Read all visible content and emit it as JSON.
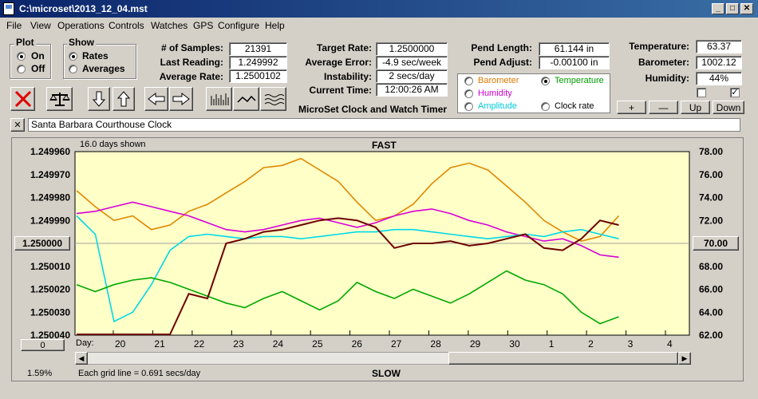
{
  "window": {
    "title": "C:\\microset\\2013_12_04.mst"
  },
  "menu": [
    "File",
    "View",
    "Operations",
    "Controls",
    "Watches",
    "GPS",
    "Configure",
    "Help"
  ],
  "plot": {
    "title": "Plot",
    "options": [
      {
        "label": "On",
        "selected": true
      },
      {
        "label": "Off",
        "selected": false
      }
    ]
  },
  "show": {
    "title": "Show",
    "options": [
      {
        "label": "Rates",
        "selected": true
      },
      {
        "label": "Averages",
        "selected": false
      }
    ]
  },
  "stats": {
    "samples_label": "# of Samples:",
    "samples": "21391",
    "last_label": "Last Reading:",
    "last": "1.249992",
    "avg_label": "Average Rate:",
    "avg": "1.2500102",
    "target_label": "Target Rate:",
    "target": "1.2500000",
    "avgerr_label": "Average Error:",
    "avgerr": "-4.9 sec/week",
    "instab_label": "Instability:",
    "instab": "2 secs/day",
    "time_label": "Current Time:",
    "time": "12:00:26 AM",
    "pendlen_label": "Pend Length:",
    "pendlen": "61.144 in",
    "pendadj_label": "Pend Adjust:",
    "pendadj": "-0.00100 in",
    "temp_label": "Temperature:",
    "temp": "63.37",
    "baro_label": "Barometer:",
    "baro": "1002.12",
    "hum_label": "Humidity:",
    "hum": "44%"
  },
  "app_name": "MicroSet Clock and Watch Timer",
  "sensors": [
    {
      "label": "Barometer",
      "color": "#e07800",
      "selected": false
    },
    {
      "label": "Temperature",
      "color": "#00a000",
      "selected": true
    },
    {
      "label": "Humidity",
      "color": "#d000d0",
      "selected": false
    },
    {
      "label": "Amplitude",
      "color": "#00d0d0",
      "selected": false
    },
    {
      "label": "Clock rate",
      "color": "#000000",
      "selected": false
    }
  ],
  "scale_buttons": [
    "+",
    "—",
    "Up",
    "Down"
  ],
  "checkboxes": [
    false,
    true
  ],
  "clock_name": "Santa Barbara Courthouse Clock",
  "close_glyph": "✕",
  "chart_data": {
    "type": "line",
    "top_label": "FAST",
    "bottom_label": "SLOW",
    "days_shown": "16.0 days shown",
    "grid_note": "Each grid line = 0.691 secs/day",
    "scroll_pct": "1.59%",
    "day_axis_label": "Day:",
    "day_ticks": [
      "20",
      "21",
      "22",
      "23",
      "24",
      "25",
      "26",
      "27",
      "28",
      "29",
      "30",
      "1",
      "2",
      "3",
      "4"
    ],
    "y_left_ticks": [
      "1.249960",
      "1.249970",
      "1.249980",
      "1.249990",
      "1.250000",
      "1.250010",
      "1.250020",
      "1.250030",
      "1.250040"
    ],
    "y_left_center": "1.250000",
    "y_right_ticks": [
      "78.00",
      "76.00",
      "74.00",
      "72.00",
      "70.00",
      "68.00",
      "66.00",
      "64.00",
      "62.00"
    ],
    "y_right_center": "70.00",
    "x_left_box": "0",
    "series": [
      {
        "color": "#e08800",
        "scale": "right",
        "values": [
          74.6,
          73.2,
          72.0,
          72.4,
          71.2,
          71.6,
          72.8,
          73.4,
          74.4,
          75.4,
          76.6,
          76.8,
          77.4,
          76.4,
          75.4,
          73.6,
          72.0,
          72.4,
          73.4,
          75.2,
          76.6,
          77.0,
          76.4,
          75.0,
          73.6,
          72.0,
          71.0,
          70.2,
          70.6,
          72.4
        ]
      },
      {
        "color": "#d800d8",
        "scale": "right",
        "values": [
          72.6,
          72.8,
          73.2,
          73.6,
          73.2,
          72.8,
          72.4,
          71.8,
          71.2,
          71.0,
          71.2,
          71.6,
          72.0,
          72.2,
          71.8,
          71.4,
          71.8,
          72.4,
          72.8,
          73.0,
          72.6,
          72.0,
          71.6,
          71.0,
          70.6,
          70.2,
          70.4,
          69.8,
          69.0,
          68.8
        ]
      },
      {
        "color": "#00d8e8",
        "scale": "right",
        "values": [
          72.4,
          70.8,
          63.2,
          64.0,
          66.4,
          69.4,
          70.6,
          70.8,
          70.6,
          70.4,
          70.6,
          70.6,
          70.4,
          70.6,
          70.8,
          71.0,
          71.0,
          71.2,
          71.2,
          71.0,
          70.8,
          70.6,
          70.4,
          70.6,
          70.8,
          70.6,
          71.0,
          71.2,
          70.8,
          70.4
        ]
      },
      {
        "color": "#00a800",
        "scale": "right",
        "values": [
          66.4,
          65.8,
          66.4,
          66.8,
          67.0,
          66.6,
          66.0,
          65.4,
          64.8,
          64.4,
          65.2,
          65.8,
          65.0,
          64.2,
          65.0,
          66.6,
          65.8,
          65.2,
          66.0,
          65.4,
          64.8,
          65.6,
          66.6,
          67.6,
          66.8,
          66.4,
          65.6,
          64.0,
          63.0,
          63.6
        ]
      },
      {
        "color": "#6e0000",
        "scale": "left",
        "values": [
          1.25004,
          1.25004,
          1.25004,
          1.25004,
          1.25004,
          1.25004,
          1.250022,
          1.250024,
          1.25,
          1.249998,
          1.249995,
          1.249994,
          1.249992,
          1.24999,
          1.249989,
          1.24999,
          1.249993,
          1.250002,
          1.25,
          1.25,
          1.249999,
          1.250001,
          1.25,
          1.249998,
          1.249996,
          1.250002,
          1.250003,
          1.249998,
          1.24999,
          1.249992
        ]
      }
    ]
  }
}
